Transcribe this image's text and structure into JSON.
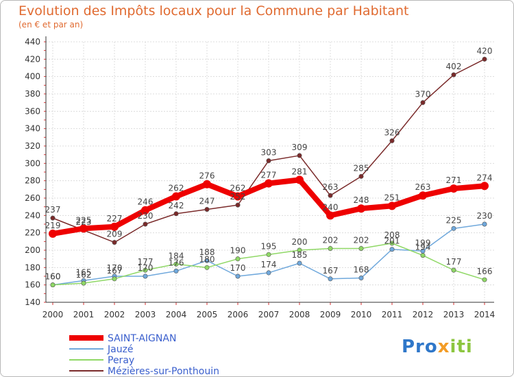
{
  "chart_data": {
    "type": "line",
    "title": "Evolution des Impôts locaux pour la Commune par Habitant",
    "subtitle": "(en € et par an)",
    "xlabel": "",
    "ylabel": "",
    "ylim": [
      140,
      440
    ],
    "yticks": [
      140,
      160,
      180,
      200,
      220,
      240,
      260,
      280,
      300,
      320,
      340,
      360,
      380,
      400,
      420,
      440
    ],
    "x": [
      2000,
      2001,
      2002,
      2003,
      2004,
      2005,
      2006,
      2007,
      2008,
      2009,
      2010,
      2011,
      2012,
      2013,
      2014
    ],
    "series": [
      {
        "name": "SAINT-AIGNAN",
        "color": "#ee0000",
        "values": [
          219,
          225,
          227,
          246,
          262,
          276,
          262,
          277,
          281,
          240,
          248,
          251,
          263,
          271,
          274
        ]
      },
      {
        "name": "Jauzé",
        "color": "#6fa8dc",
        "values": [
          160,
          165,
          170,
          170,
          176,
          188,
          170,
          174,
          185,
          167,
          168,
          201,
          199,
          225,
          230
        ]
      },
      {
        "name": "Peray",
        "color": "#8fd865",
        "values": [
          160,
          162,
          167,
          177,
          184,
          180,
          190,
          195,
          200,
          202,
          202,
          208,
          194,
          177,
          166
        ]
      },
      {
        "name": "Mézières-sur-Ponthouin",
        "color": "#7a2a2a",
        "values": [
          237,
          223,
          209,
          230,
          242,
          247,
          252,
          303,
          309,
          263,
          285,
          326,
          370,
          402,
          420
        ]
      }
    ]
  },
  "logo": {
    "p1": "Pro",
    "p2": "x",
    "p3": "iti"
  }
}
